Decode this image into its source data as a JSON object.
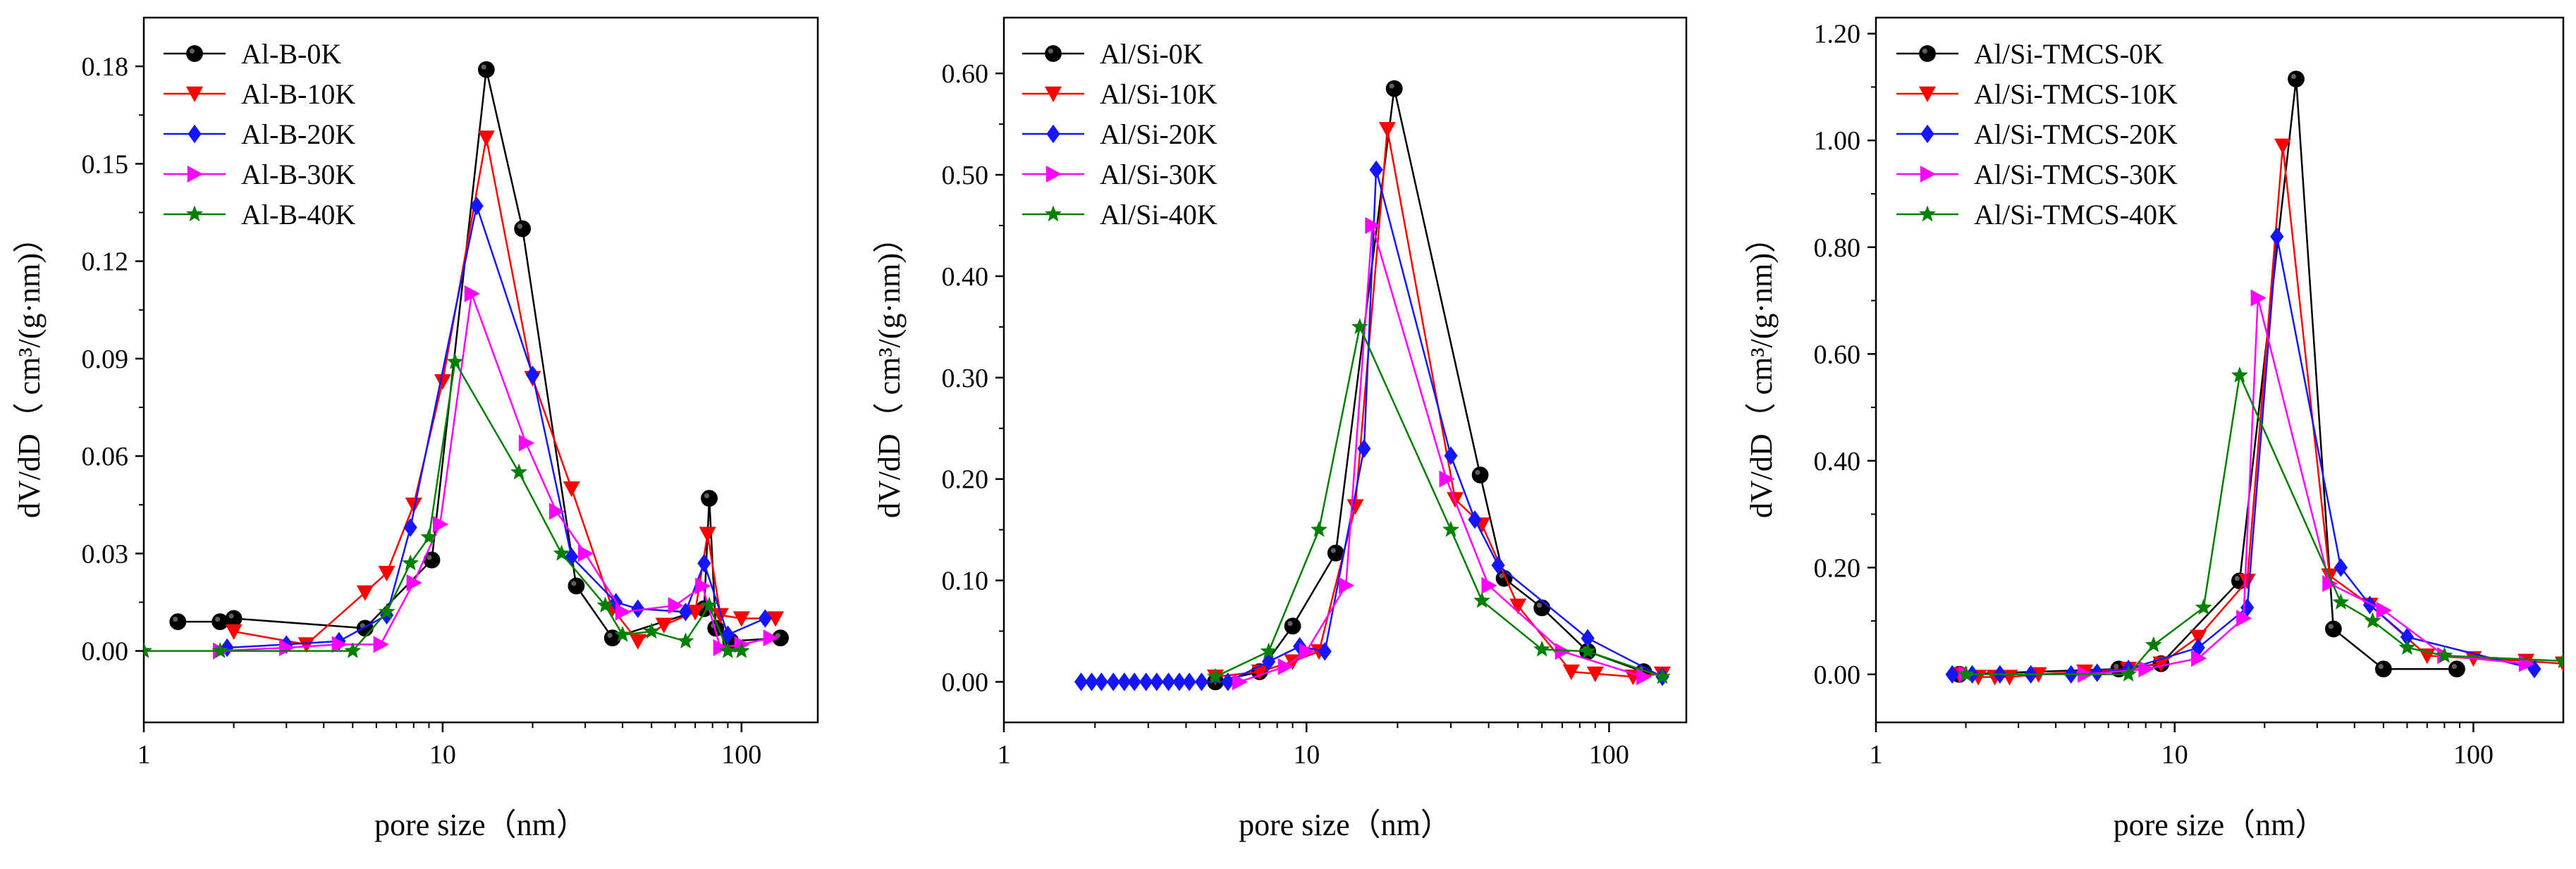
{
  "figure": {
    "colors": {
      "black": "#000000",
      "red": "#ff0000",
      "blue": "#1515ff",
      "magenta": "#ff00ff",
      "green": "#008000"
    },
    "marker_names": [
      "circle",
      "triangle-down",
      "diamond",
      "triangle-right",
      "star"
    ]
  },
  "chart_data": [
    {
      "type": "line",
      "title": "",
      "xlabel": "pore size（nm）",
      "ylabel": "dV/dD（ cm³/(g·nm)）",
      "xscale": "log",
      "xlim": [
        1,
        180
      ],
      "ylim": [
        -0.022,
        0.195
      ],
      "xticks": [
        1,
        10,
        100
      ],
      "xtick_labels": [
        "1",
        "10",
        "100"
      ],
      "yticks": [
        0.0,
        0.03,
        0.06,
        0.09,
        0.12,
        0.15,
        0.18
      ],
      "ytick_labels": [
        "0.00",
        "0.03",
        "0.06",
        "0.09",
        "0.12",
        "0.15",
        "0.18"
      ],
      "legend": "top-left",
      "series": [
        {
          "name": "Al-B-0K",
          "color": "#000000",
          "marker": "circle",
          "x": [
            1.3,
            1.8,
            2.0,
            5.5,
            9.2,
            14.0,
            18.5,
            28.0,
            37.0,
            75.0,
            78.0,
            82.0,
            92.0,
            135.0
          ],
          "y": [
            0.009,
            0.009,
            0.01,
            0.007,
            0.028,
            0.179,
            0.13,
            0.02,
            0.004,
            0.013,
            0.047,
            0.007,
            0.003,
            0.004
          ]
        },
        {
          "name": "Al-B-10K",
          "color": "#ff0000",
          "marker": "triangle-down",
          "x": [
            2.0,
            3.5,
            5.5,
            6.5,
            8.0,
            10.0,
            14.0,
            20.0,
            27.0,
            37.0,
            45.0,
            55.0,
            70.0,
            77.0,
            85.0,
            100.0,
            130.0
          ],
          "y": [
            0.006,
            0.002,
            0.018,
            0.024,
            0.045,
            0.083,
            0.158,
            0.084,
            0.05,
            0.013,
            0.003,
            0.008,
            0.012,
            0.036,
            0.011,
            0.01,
            0.01
          ]
        },
        {
          "name": "Al-B-20K",
          "color": "#1515ff",
          "marker": "diamond",
          "x": [
            1.9,
            3.0,
            4.5,
            6.5,
            7.8,
            13.0,
            20.0,
            27.0,
            38.0,
            45.0,
            65.0,
            75.0,
            90.0,
            120.0
          ],
          "y": [
            0.001,
            0.002,
            0.003,
            0.011,
            0.038,
            0.137,
            0.085,
            0.029,
            0.015,
            0.013,
            0.012,
            0.027,
            0.005,
            0.01
          ]
        },
        {
          "name": "Al-B-30K",
          "color": "#ff00ff",
          "marker": "triangle-right",
          "x": [
            1.8,
            3.0,
            4.5,
            6.2,
            8.0,
            9.8,
            12.5,
            19.0,
            24.0,
            30.0,
            40.0,
            60.0,
            74.0,
            85.0,
            100.0,
            125.0
          ],
          "y": [
            0.0,
            0.001,
            0.002,
            0.002,
            0.021,
            0.039,
            0.11,
            0.064,
            0.043,
            0.03,
            0.012,
            0.014,
            0.02,
            0.001,
            0.002,
            0.004
          ]
        },
        {
          "name": "Al-B-40K",
          "color": "#008000",
          "marker": "star",
          "x": [
            1.0,
            1.8,
            5.0,
            6.5,
            7.8,
            9.0,
            11.0,
            18.0,
            25.0,
            35.0,
            40.0,
            50.0,
            65.0,
            78.0,
            90.0,
            100.0
          ],
          "y": [
            0.0,
            0.0,
            0.0,
            0.012,
            0.027,
            0.035,
            0.089,
            0.055,
            0.03,
            0.014,
            0.005,
            0.006,
            0.003,
            0.014,
            0.0,
            0.0
          ]
        }
      ]
    },
    {
      "type": "line",
      "title": "",
      "xlabel": "pore size（nm）",
      "ylabel": "dV/dD（ cm³/(g·nm)）",
      "xscale": "log",
      "xlim": [
        1,
        180
      ],
      "ylim": [
        -0.04,
        0.655
      ],
      "xticks": [
        1,
        10,
        100
      ],
      "xtick_labels": [
        "1",
        "10",
        "100"
      ],
      "yticks": [
        0.0,
        0.1,
        0.2,
        0.3,
        0.4,
        0.5,
        0.6
      ],
      "ytick_labels": [
        "0.00",
        "0.10",
        "0.20",
        "0.30",
        "0.40",
        "0.50",
        "0.60"
      ],
      "legend": "top-left",
      "series": [
        {
          "name": "Al/Si-0K",
          "color": "#000000",
          "marker": "circle",
          "x": [
            5.0,
            7.0,
            9.0,
            12.5,
            19.5,
            37.5,
            45.0,
            60.0,
            85.0,
            130.0
          ],
          "y": [
            0.0,
            0.01,
            0.055,
            0.127,
            0.585,
            0.204,
            0.102,
            0.073,
            0.03,
            0.01
          ]
        },
        {
          "name": "Al/Si-10K",
          "color": "#ff0000",
          "marker": "triangle-down",
          "x": [
            5.0,
            7.0,
            9.0,
            11.0,
            14.5,
            18.5,
            31.0,
            38.0,
            50.0,
            75.0,
            90.0,
            120.0,
            150.0
          ],
          "y": [
            0.005,
            0.01,
            0.02,
            0.03,
            0.173,
            0.545,
            0.18,
            0.155,
            0.075,
            0.01,
            0.008,
            0.005,
            0.008
          ]
        },
        {
          "name": "Al/Si-20K",
          "color": "#1515ff",
          "marker": "diamond",
          "x": [
            1.8,
            1.95,
            2.1,
            2.3,
            2.5,
            2.7,
            2.95,
            3.2,
            3.5,
            3.8,
            4.1,
            4.5,
            5.5,
            7.5,
            9.5,
            11.5,
            15.5,
            17.0,
            30.0,
            36.0,
            43.0,
            85.0,
            150.0
          ],
          "y": [
            0.0,
            0.0,
            0.0,
            0.0,
            0.0,
            0.0,
            0.0,
            0.0,
            0.0,
            0.0,
            0.0,
            0.0,
            0.0,
            0.02,
            0.035,
            0.03,
            0.23,
            0.505,
            0.223,
            0.16,
            0.115,
            0.043,
            0.005
          ]
        },
        {
          "name": "Al/Si-30K",
          "color": "#ff00ff",
          "marker": "triangle-right",
          "x": [
            6.0,
            8.5,
            10.0,
            13.5,
            16.5,
            29.0,
            40.0,
            70.0,
            130.0
          ],
          "y": [
            0.0,
            0.015,
            0.03,
            0.095,
            0.45,
            0.2,
            0.095,
            0.03,
            0.005
          ]
        },
        {
          "name": "Al/Si-40K",
          "color": "#008000",
          "marker": "star",
          "x": [
            5.0,
            7.5,
            11.0,
            15.0,
            30.0,
            38.0,
            60.0,
            85.0,
            150.0
          ],
          "y": [
            0.005,
            0.03,
            0.15,
            0.35,
            0.15,
            0.08,
            0.032,
            0.03,
            0.005
          ]
        }
      ]
    },
    {
      "type": "line",
      "title": "",
      "xlabel": "pore size（nm）",
      "ylabel": "dV/dD（ cm³/(g·nm)）",
      "xscale": "log",
      "xlim": [
        1,
        200
      ],
      "ylim": [
        -0.09,
        1.23
      ],
      "xticks": [
        1,
        10,
        100
      ],
      "xtick_labels": [
        "1",
        "10",
        "100"
      ],
      "yticks": [
        0.0,
        0.2,
        0.4,
        0.6,
        0.8,
        1.0,
        1.2
      ],
      "ytick_labels": [
        "0.00",
        "0.20",
        "0.40",
        "0.60",
        "0.80",
        "1.00",
        "1.20"
      ],
      "legend": "top-left",
      "series": [
        {
          "name": "Al/Si-TMCS-0K",
          "color": "#000000",
          "marker": "circle",
          "x": [
            1.9,
            6.5,
            9.0,
            16.5,
            25.5,
            34.0,
            50.0,
            88.0
          ],
          "y": [
            0.0,
            0.01,
            0.02,
            0.175,
            1.115,
            0.085,
            0.01,
            0.01
          ]
        },
        {
          "name": "Al/Si-TMCS-10K",
          "color": "#ff0000",
          "marker": "triangle-down",
          "x": [
            1.9,
            2.2,
            2.5,
            2.8,
            3.5,
            5.0,
            7.0,
            9.0,
            12.0,
            17.5,
            23.0,
            33.0,
            45.0,
            70.0,
            100.0,
            150.0,
            200.0
          ],
          "y": [
            0.0,
            -0.005,
            -0.005,
            -0.005,
            0.0,
            0.005,
            0.01,
            0.02,
            0.07,
            0.175,
            0.99,
            0.185,
            0.13,
            0.035,
            0.03,
            0.025,
            0.02
          ]
        },
        {
          "name": "Al/Si-TMCS-20K",
          "color": "#1515ff",
          "marker": "diamond",
          "x": [
            1.8,
            2.1,
            2.6,
            3.3,
            4.5,
            5.5,
            7.0,
            12.0,
            17.5,
            22.0,
            36.0,
            45.0,
            60.0,
            160.0
          ],
          "y": [
            0.0,
            0.0,
            0.0,
            0.0,
            0.0,
            0.003,
            0.01,
            0.05,
            0.125,
            0.82,
            0.2,
            0.13,
            0.07,
            0.01
          ]
        },
        {
          "name": "Al/Si-TMCS-30K",
          "color": "#ff00ff",
          "marker": "triangle-right",
          "x": [
            2.0,
            5.0,
            8.0,
            12.0,
            17.0,
            19.0,
            33.0,
            50.0,
            80.0,
            150.0
          ],
          "y": [
            0.0,
            0.0,
            0.01,
            0.03,
            0.105,
            0.705,
            0.17,
            0.12,
            0.035,
            0.02
          ]
        },
        {
          "name": "Al/Si-TMCS-40K",
          "color": "#008000",
          "marker": "star",
          "x": [
            2.0,
            7.0,
            8.5,
            12.5,
            16.5,
            36.0,
            46.0,
            60.0,
            80.0,
            200.0
          ],
          "y": [
            0.0,
            0.0,
            0.055,
            0.125,
            0.56,
            0.135,
            0.1,
            0.05,
            0.035,
            0.025
          ]
        }
      ]
    }
  ]
}
